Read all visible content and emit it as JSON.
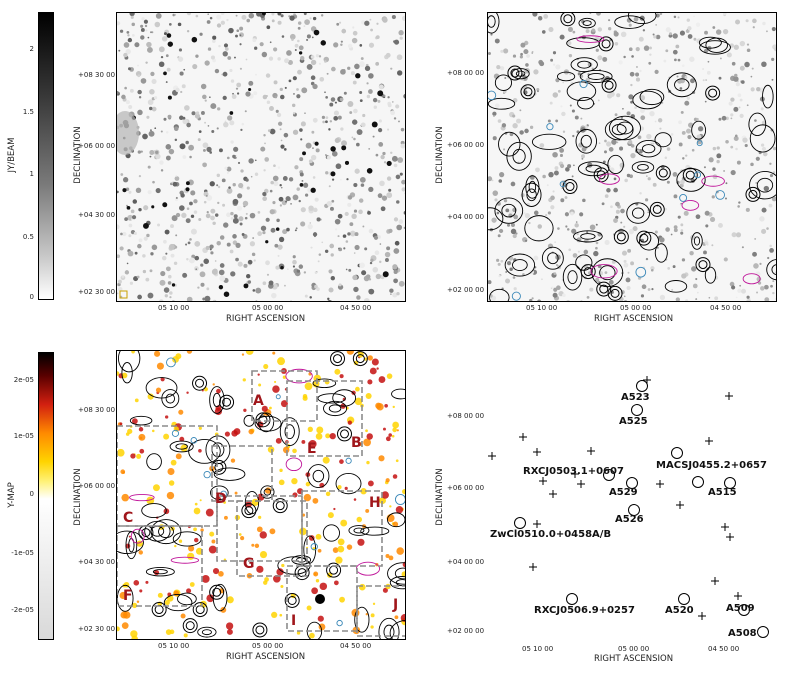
{
  "colorbar_top": {
    "label": "JY/BEAM",
    "ticks": [
      "2",
      "1.5",
      "1",
      "0.5",
      "0"
    ]
  },
  "colorbar_bottom": {
    "label": "Y-MAP",
    "ticks": [
      "2e-05",
      "1e-05",
      "0",
      "-1e-05",
      "-2e-05"
    ]
  },
  "panel_tl": {
    "xlabel": "RIGHT ASCENSION",
    "ylabel": "DECLINATION",
    "xticks": [
      "05 10 00",
      "05 00 00",
      "04 50 00"
    ],
    "yticks": [
      "+08 30 00",
      "+06 00 00",
      "+04 30 00",
      "+02 30 00"
    ]
  },
  "panel_tr": {
    "xlabel": "RIGHT ASCENSION",
    "ylabel": "DECLINATION",
    "xticks": [
      "05 10 00",
      "05 00 00",
      "04 50 00"
    ],
    "yticks": [
      "+08 00 00",
      "+06 00 00",
      "+04 00 00",
      "+02 00 00"
    ]
  },
  "panel_bl": {
    "xlabel": "RIGHT ASCENSION",
    "ylabel": "DECLINATION",
    "xticks": [
      "05 10 00",
      "05 00 00",
      "04 50 00"
    ],
    "yticks": [
      "+08 30 00",
      "+06 00 00",
      "+04 30 00",
      "+02 30 00"
    ],
    "regions": [
      "A",
      "B",
      "C",
      "D",
      "E",
      "F",
      "G",
      "H",
      "I",
      "J"
    ]
  },
  "panel_br": {
    "xlabel": "RIGHT ASCENSION",
    "ylabel": "DECLINATION",
    "xticks": [
      "05 10 00",
      "05 00 00",
      "04 50 00"
    ],
    "yticks": [
      "+08 00 00",
      "+06 00 00",
      "+04 00 00",
      "+02 00 00"
    ],
    "clusters": [
      "A523",
      "A525",
      "RXCJ0503.1+0607",
      "MACSJ0455.2+0657",
      "A529",
      "A515",
      "A526",
      "ZwCl0510.0+0458A/B",
      "RXCJ0506.9+0257",
      "A520",
      "A509",
      "A508"
    ]
  },
  "colors": {
    "contour": "#000000",
    "negative_contour": "#c0169a",
    "cyan_contour": "#3a88b8",
    "region_box": "#8c8c8c",
    "region_label": "#a0161b",
    "heat_yellow": "#ffd400",
    "heat_orange": "#ff8a00",
    "heat_red": "#c41010"
  }
}
